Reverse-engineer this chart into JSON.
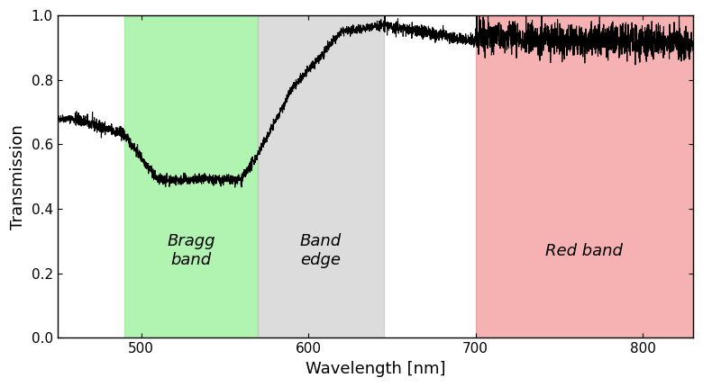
{
  "xlabel": "Wavelength [nm]",
  "ylabel": "Transmission",
  "xlim": [
    450,
    830
  ],
  "ylim": [
    0,
    1.0
  ],
  "xticks": [
    500,
    600,
    700,
    800
  ],
  "yticks": [
    0,
    0.2,
    0.4,
    0.6,
    0.8,
    1.0
  ],
  "bragg_band": [
    490,
    570
  ],
  "band_edge": [
    570,
    645
  ],
  "red_band": [
    700,
    830
  ],
  "bragg_color": "#90EE90",
  "band_edge_color": "#C0C0C0",
  "red_band_color": "#F08080",
  "bragg_label": "Bragg\nband",
  "band_edge_label": "Band\nedge",
  "red_band_label": "Red band",
  "label_fontsize": 13,
  "axis_fontsize": 13,
  "line_color": "black",
  "line_width": 0.8
}
